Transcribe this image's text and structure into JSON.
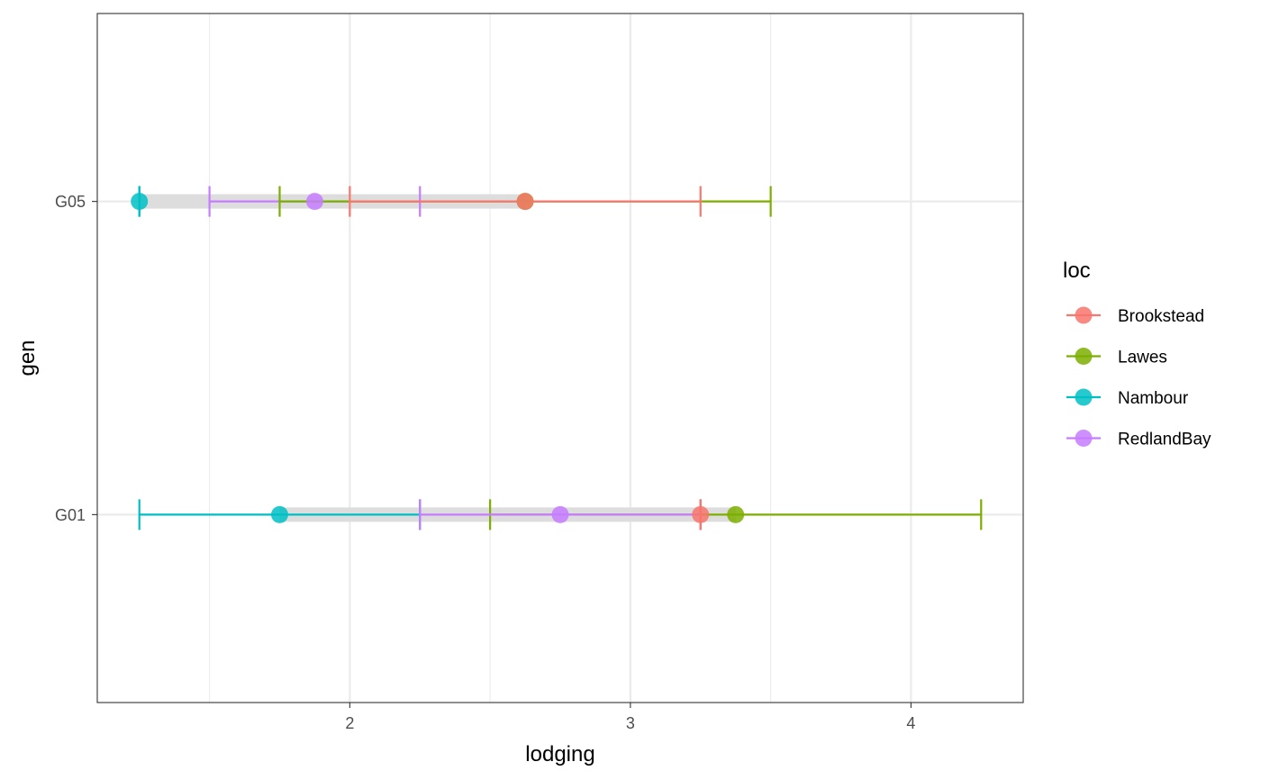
{
  "chart_data": {
    "type": "errorbar-dot",
    "title": "",
    "xlabel": "lodging",
    "ylabel": "gen",
    "xlim": [
      1.1,
      4.4
    ],
    "x_ticks": [
      2,
      3,
      4
    ],
    "x_minor_ticks": [
      1.5,
      2.5,
      3.5
    ],
    "categories": [
      "G01",
      "G05"
    ],
    "legend": {
      "title": "loc",
      "position": "right",
      "entries": [
        {
          "name": "Brookstead",
          "color": "#F8766D"
        },
        {
          "name": "Lawes",
          "color": "#7CAE00"
        },
        {
          "name": "Nambour",
          "color": "#00BFC4"
        },
        {
          "name": "RedlandBay",
          "color": "#C77CFF"
        }
      ]
    },
    "range_bands": [
      {
        "gen": "G05",
        "min": 1.25,
        "max": 2.625
      },
      {
        "gen": "G01",
        "min": 1.75,
        "max": 3.375
      }
    ],
    "series": [
      {
        "gen": "G05",
        "loc": "RedlandBay",
        "mean": 1.875,
        "lower": 1.5,
        "upper": 2.25
      },
      {
        "gen": "G05",
        "loc": "Lawes",
        "mean": 2.625,
        "lower": 1.75,
        "upper": 3.5
      },
      {
        "gen": "G05",
        "loc": "Brookstead",
        "mean": 2.625,
        "lower": 2.0,
        "upper": 3.25
      },
      {
        "gen": "G05",
        "loc": "Nambour",
        "mean": 1.25,
        "lower": 1.25,
        "upper": 1.25
      },
      {
        "gen": "G01",
        "loc": "Nambour",
        "mean": 1.75,
        "lower": 1.25,
        "upper": 2.25
      },
      {
        "gen": "G01",
        "loc": "Lawes",
        "mean": 3.375,
        "lower": 2.5,
        "upper": 4.25
      },
      {
        "gen": "G01",
        "loc": "RedlandBay",
        "mean": 2.75,
        "lower": 2.25,
        "upper": 3.25
      },
      {
        "gen": "G01",
        "loc": "Brookstead",
        "mean": 3.25,
        "lower": 3.25,
        "upper": 3.25
      }
    ]
  }
}
